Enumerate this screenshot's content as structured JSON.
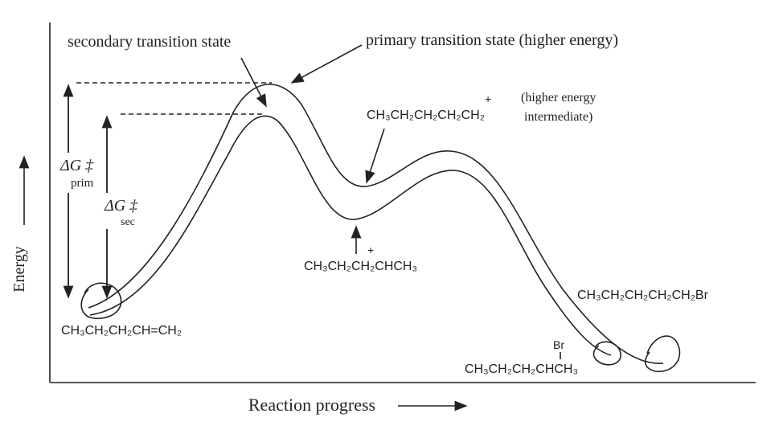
{
  "labels": {
    "secondary_ts": "secondary transition state",
    "primary_ts": "primary transition state (higher energy)",
    "primary_cation": {
      "formula": "CH₃CH₂CH₂CH₂CH₂",
      "charge": "+",
      "note_line1": "(higher energy",
      "note_line2": "intermediate)"
    },
    "secondary_cation": {
      "formula": "CH₃CH₂CH₂CHCH₃",
      "charge": "+"
    },
    "reactant": "CH₃CH₂CH₂CH=CH₂",
    "product_primary": "CH₃CH₂CH₂CH₂CH₂Br",
    "product_secondary": {
      "formula": "CH₃CH₂CH₂CHCH₃",
      "substituent": "Br"
    },
    "delta_g_prim": {
      "symbol": "ΔG ‡",
      "subscript": "prim"
    },
    "delta_g_sec": {
      "symbol": "ΔG ‡",
      "subscript": "sec"
    }
  },
  "axes": {
    "y_label": "Energy",
    "x_label": "Reaction progress"
  }
}
